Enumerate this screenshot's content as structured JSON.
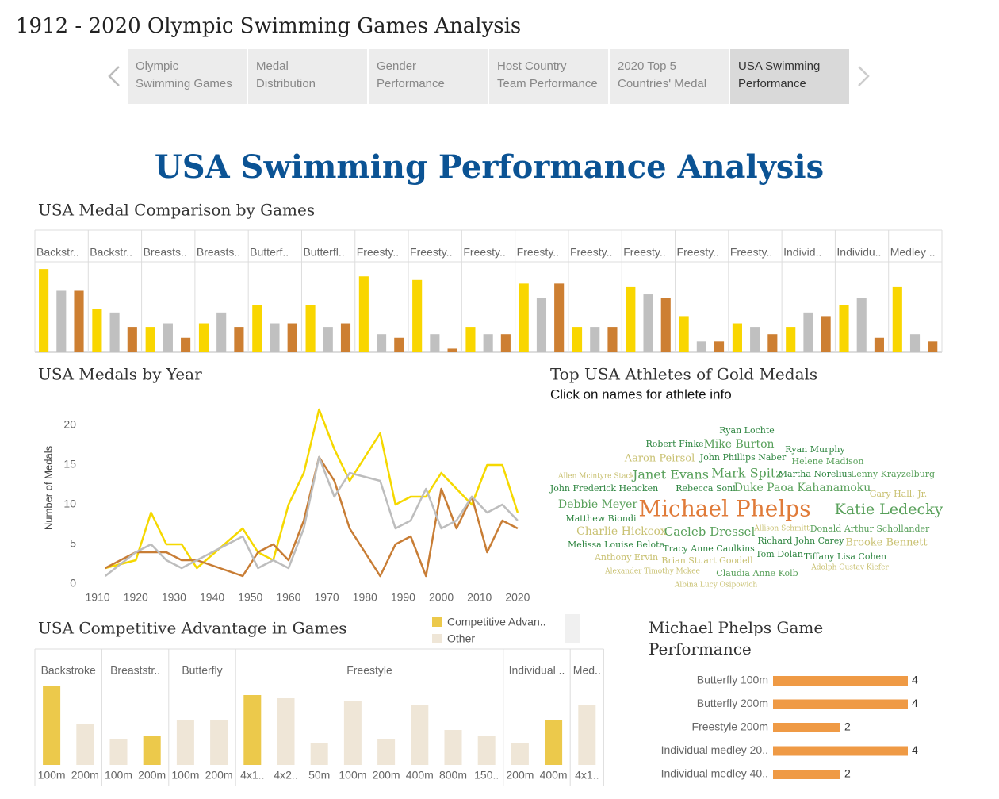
{
  "title": "1912 - 2020 Olympic Swimming Games Analysis",
  "tabs": [
    [
      "Olympic",
      "Swimming Games"
    ],
    [
      "Medal",
      "Distribution"
    ],
    [
      "Gender",
      "Performance"
    ],
    [
      "Host Country",
      "Team Performance"
    ],
    [
      "2020 Top 5",
      "Countries' Medal"
    ],
    [
      "USA Swimming",
      "Performance"
    ]
  ],
  "heading": "USA Swimming Performance Analysis",
  "chart_data": [
    {
      "type": "bar",
      "title": "USA Medal Comparison by Games",
      "categories": [
        "Backstr..",
        "Backstr..",
        "Breasts..",
        "Breasts..",
        "Butterf..",
        "Butterfl..",
        "Freesty..",
        "Freesty..",
        "Freesty..",
        "Freesty..",
        "Freesty..",
        "Freesty..",
        "Freesty..",
        "Freesty..",
        "Individ..",
        "Individu..",
        "Medley .."
      ],
      "series": [
        {
          "name": "Gold",
          "color": "#f9d600",
          "values": [
            23,
            12,
            7,
            8,
            13,
            13,
            21,
            20,
            7,
            19,
            7,
            18,
            10,
            8,
            7,
            13,
            18
          ]
        },
        {
          "name": "Silver",
          "color": "#c0c0c0",
          "values": [
            17,
            11,
            8,
            11,
            8,
            7,
            5,
            5,
            5,
            15,
            7,
            16,
            3,
            7,
            11,
            15,
            5
          ]
        },
        {
          "name": "Bronze",
          "color": "#cd7f32",
          "values": [
            17,
            7,
            4,
            7,
            8,
            8,
            4,
            1,
            5,
            19,
            7,
            15,
            3,
            5,
            10,
            4,
            3
          ]
        }
      ],
      "ylim": [
        0,
        25
      ]
    },
    {
      "type": "line",
      "title": "USA Medals by Year",
      "ylabel": "Number of Medals",
      "x": [
        1912,
        1920,
        1924,
        1928,
        1932,
        1936,
        1948,
        1952,
        1956,
        1960,
        1964,
        1968,
        1972,
        1976,
        1984,
        1988,
        1992,
        1996,
        2000,
        2004,
        2008,
        2012,
        2016,
        2020
      ],
      "series": [
        {
          "name": "Gold",
          "color": "#f5d800",
          "values": [
            2,
            3,
            9,
            5,
            5,
            2,
            7,
            4,
            3,
            10,
            14,
            22,
            17,
            13,
            19,
            10,
            11,
            11,
            14,
            12,
            10,
            15,
            15,
            9
          ]
        },
        {
          "name": "Bronze",
          "color": "#c87d35",
          "values": [
            2,
            4,
            4,
            4,
            3,
            3,
            1,
            4,
            5,
            3,
            8,
            16,
            13,
            7,
            1,
            5,
            6,
            1,
            12,
            7,
            11,
            4,
            8,
            7
          ]
        },
        {
          "name": "Silver",
          "color": "#bdbdbd",
          "values": [
            1,
            4,
            5,
            3,
            2,
            3,
            6,
            2,
            3,
            2,
            7,
            16,
            11,
            14,
            13,
            7,
            8,
            12,
            7,
            8,
            11,
            9,
            10,
            8
          ]
        }
      ],
      "xlim": [
        1905,
        2025
      ],
      "xticks": [
        1910,
        1920,
        1930,
        1940,
        1950,
        1960,
        1970,
        1980,
        1990,
        2000,
        2010,
        2020
      ],
      "ylim": [
        -1,
        23
      ],
      "yticks": [
        0,
        5,
        10,
        15,
        20
      ]
    },
    {
      "type": "grouped-bar",
      "title": "USA Competitive Advantage in Games",
      "groups": [
        {
          "name": "Backstroke",
          "categories": [
            "100m",
            "200m"
          ]
        },
        {
          "name": "Breaststr..",
          "categories": [
            "100m",
            "200m"
          ]
        },
        {
          "name": "Butterfly",
          "categories": [
            "100m",
            "200m"
          ]
        },
        {
          "name": "Freestyle",
          "categories": [
            "4x1..",
            "4x2..",
            "50m",
            "100m",
            "200m",
            "400m",
            "800m",
            "150.."
          ]
        },
        {
          "name": "Individual ..",
          "categories": [
            "200m",
            "400m"
          ]
        },
        {
          "name": "Med..",
          "categories": [
            "4x1.."
          ]
        }
      ],
      "series": [
        {
          "name": "Competitive Advan..",
          "color": "#ecc94b",
          "values": [
            25,
            null,
            null,
            9,
            null,
            null,
            22,
            null,
            null,
            null,
            null,
            null,
            null,
            null,
            null,
            14,
            null
          ]
        },
        {
          "name": "Other",
          "color": "#efe6d7",
          "values": [
            null,
            13,
            8,
            null,
            14,
            14,
            null,
            21,
            7,
            20,
            8,
            19,
            11,
            9,
            7,
            null,
            19
          ]
        }
      ],
      "ylim": [
        0,
        27
      ]
    },
    {
      "type": "hbar",
      "title": "Michael Phelps Game Performance",
      "categories": [
        "Butterfly 100m",
        "Butterfly 200m",
        "Freestyle 200m",
        "Individual medley 20..",
        "Individual medley 40.."
      ],
      "values": [
        4,
        4,
        2,
        4,
        2
      ],
      "color": "#ef9a45",
      "xlim": [
        0,
        4
      ]
    }
  ],
  "athletes": {
    "title": "Top USA Athletes of Gold Medals",
    "subtitle": "Click on names for athlete info",
    "names": [
      "Ryan Lochte",
      "Robert Finke",
      "Mike Burton",
      "Ryan Murphy",
      "Aaron Peirsol",
      "John Phillips Naber",
      "Helene Madison",
      "Allen Mcintyre Stack",
      "Janet Evans",
      "Mark Spitz",
      "Martha Norelius",
      "Lenny Krayzelburg",
      "John Frederick Hencken",
      "Rebecca Soni",
      "Duke Paoa Kahanamoku",
      "Gary Hall, Jr.",
      "Debbie Meyer",
      "Michael Phelps",
      "Katie Ledecky",
      "Matthew Biondi",
      "Charlie Hickcox",
      "Caeleb Dressel",
      "Allison Schmitt",
      "Donald Arthur Schollander",
      "Melissa Louise Belote",
      "Richard John Carey",
      "Brooke Bennett",
      "Tracy Anne Caulkins",
      "Tom Dolan",
      "Tiffany Lisa Cohen",
      "Anthony Ervin",
      "Brian Stuart Goodell",
      "Adolph Gustav Kiefer",
      "Alexander Timothy Mckee",
      "Claudia Anne Kolb",
      "Albina Lucy Osipowich"
    ]
  }
}
